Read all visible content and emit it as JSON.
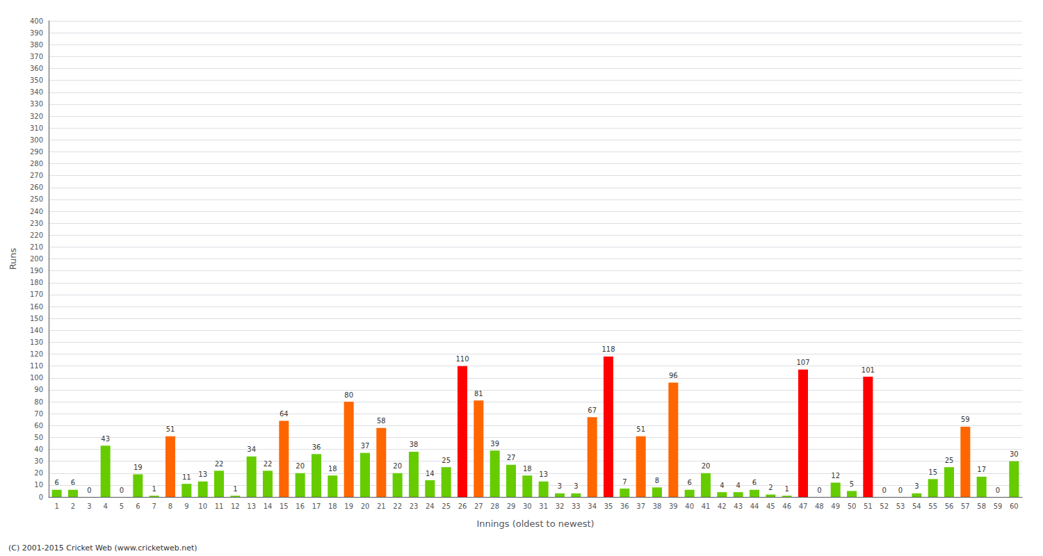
{
  "chart_data": {
    "type": "bar",
    "xlabel": "Innings (oldest to newest)",
    "ylabel": "Runs",
    "categories": [
      1,
      2,
      3,
      4,
      5,
      6,
      7,
      8,
      9,
      10,
      11,
      12,
      13,
      14,
      15,
      16,
      17,
      18,
      19,
      20,
      21,
      22,
      23,
      24,
      25,
      26,
      27,
      28,
      29,
      30,
      31,
      32,
      33,
      34,
      35,
      36,
      37,
      38,
      39,
      40,
      41,
      42,
      43,
      44,
      45,
      46,
      47,
      48,
      49,
      50,
      51,
      52,
      53,
      54,
      55,
      56,
      57,
      58,
      59,
      60
    ],
    "values": [
      6,
      6,
      0,
      43,
      0,
      19,
      1,
      51,
      11,
      13,
      22,
      1,
      34,
      22,
      64,
      20,
      36,
      18,
      80,
      37,
      58,
      20,
      38,
      14,
      25,
      110,
      81,
      39,
      27,
      18,
      13,
      3,
      3,
      67,
      118,
      7,
      51,
      8,
      96,
      6,
      20,
      4,
      4,
      6,
      2,
      1,
      107,
      0,
      12,
      5,
      101,
      0,
      0,
      3,
      15,
      25,
      59,
      17,
      0,
      30
    ],
    "colors": [
      "#66cc00",
      "#66cc00",
      "#66cc00",
      "#66cc00",
      "#66cc00",
      "#66cc00",
      "#66cc00",
      "#ff6600",
      "#66cc00",
      "#66cc00",
      "#66cc00",
      "#66cc00",
      "#66cc00",
      "#66cc00",
      "#ff6600",
      "#66cc00",
      "#66cc00",
      "#66cc00",
      "#ff6600",
      "#66cc00",
      "#ff6600",
      "#66cc00",
      "#66cc00",
      "#66cc00",
      "#66cc00",
      "#ff0000",
      "#ff6600",
      "#66cc00",
      "#66cc00",
      "#66cc00",
      "#66cc00",
      "#66cc00",
      "#66cc00",
      "#ff6600",
      "#ff0000",
      "#66cc00",
      "#ff6600",
      "#66cc00",
      "#ff6600",
      "#66cc00",
      "#66cc00",
      "#66cc00",
      "#66cc00",
      "#66cc00",
      "#66cc00",
      "#66cc00",
      "#ff0000",
      "#66cc00",
      "#66cc00",
      "#66cc00",
      "#ff0000",
      "#66cc00",
      "#66cc00",
      "#66cc00",
      "#66cc00",
      "#66cc00",
      "#ff6600",
      "#66cc00",
      "#66cc00",
      "#66cc00"
    ],
    "ylim": [
      0,
      400
    ],
    "yticks": [
      0,
      10,
      20,
      30,
      40,
      50,
      60,
      70,
      80,
      90,
      100,
      110,
      120,
      130,
      140,
      150,
      160,
      170,
      180,
      190,
      200,
      210,
      220,
      230,
      240,
      250,
      260,
      270,
      280,
      290,
      300,
      310,
      320,
      330,
      340,
      350,
      360,
      370,
      380,
      390,
      400
    ],
    "grid": true,
    "data_labels": true,
    "annotations": [
      "(C) 2001-2015 Cricket Web (www.cricketweb.net)"
    ]
  }
}
